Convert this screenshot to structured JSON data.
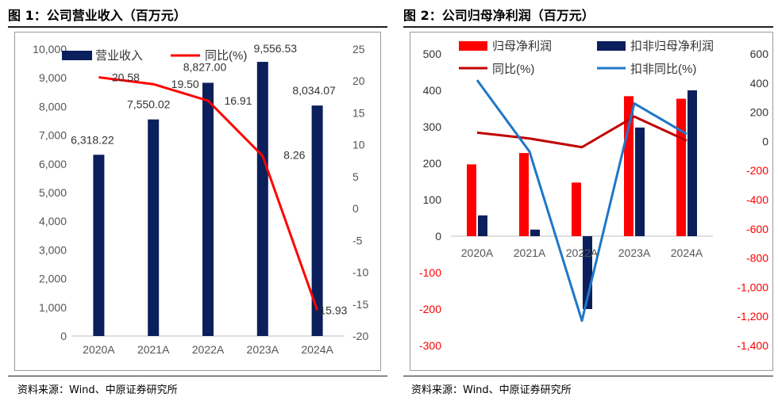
{
  "figure1": {
    "title": "图 1：公司营业收入（百万元）",
    "source": "资料来源：Wind、中原证券研究所",
    "chart_data": {
      "type": "bar",
      "categories": [
        "2020A",
        "2021A",
        "2022A",
        "2023A",
        "2024A"
      ],
      "series": [
        {
          "name": "营业收入",
          "type": "bar",
          "axis": "left",
          "color": "#0b1f5c",
          "values": [
            6318.22,
            7550.02,
            8827.0,
            9556.53,
            8034.07
          ],
          "labels": [
            "6,318.22",
            "7,550.02",
            "8,827.00",
            "9,556.53",
            "8,034.07"
          ]
        },
        {
          "name": "同比(%)",
          "type": "line",
          "axis": "right",
          "color": "#ff0000",
          "values": [
            20.58,
            19.5,
            16.91,
            8.26,
            -15.93
          ],
          "labels": [
            "20.58",
            "19.50",
            "16.91",
            "8.26",
            "-15.93"
          ]
        }
      ],
      "left_axis": {
        "min": 0,
        "max": 10000,
        "ticks": [
          "0",
          "1,000",
          "2,000",
          "3,000",
          "4,000",
          "5,000",
          "6,000",
          "7,000",
          "8,000",
          "9,000",
          "10,000"
        ]
      },
      "right_axis": {
        "min": -20,
        "max": 25,
        "ticks": [
          "-20",
          "-15",
          "-10",
          "-5",
          "0",
          "5",
          "10",
          "15",
          "20",
          "25"
        ]
      },
      "grid": false,
      "legend": "top"
    }
  },
  "figure2": {
    "title": "图 2：公司归母净利润（百万元）",
    "source": "资料来源：Wind、中原证券研究所",
    "chart_data": {
      "type": "bar",
      "categories": [
        "2020A",
        "2021A",
        "2022A",
        "2023A",
        "2024A"
      ],
      "series": [
        {
          "name": "归母净利润",
          "type": "bar",
          "axis": "left",
          "color": "#ff0000",
          "values": [
            197,
            228,
            147,
            384,
            377
          ]
        },
        {
          "name": "扣非归母净利润",
          "type": "bar",
          "axis": "left",
          "color": "#0b1f5c",
          "values": [
            57,
            18,
            -200,
            298,
            400
          ]
        },
        {
          "name": "同比(%)",
          "type": "line",
          "axis": "right",
          "color": "#c00000",
          "values": [
            60,
            20,
            -40,
            170,
            5
          ]
        },
        {
          "name": "扣非同比(%)",
          "type": "line",
          "axis": "right",
          "color": "#1f77c8",
          "values": [
            420,
            -70,
            -1230,
            260,
            50
          ]
        }
      ],
      "left_axis": {
        "min": -300,
        "max": 500,
        "ticks": [
          "-300",
          "-200",
          "-100",
          "0",
          "100",
          "200",
          "300",
          "400",
          "500"
        ]
      },
      "right_axis": {
        "min": -1400,
        "max": 600,
        "ticks": [
          "-1,400",
          "-1,200",
          "-1,000",
          "-800",
          "-600",
          "-400",
          "-200",
          "0",
          "200",
          "400",
          "600"
        ]
      },
      "grid": false,
      "legend": "top"
    }
  }
}
